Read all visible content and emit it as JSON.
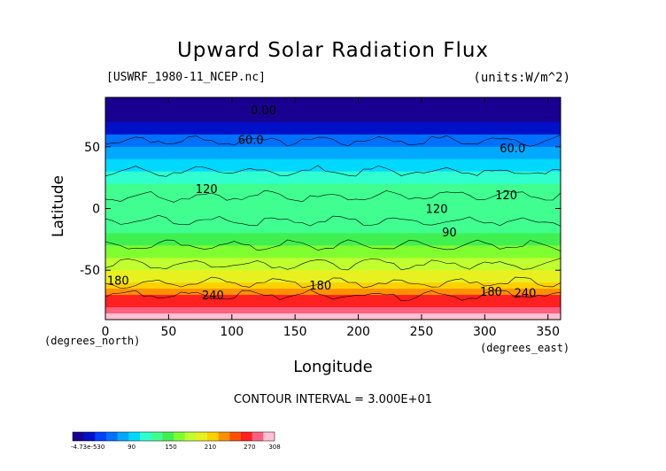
{
  "header": {
    "title": "Upward Solar Radiation Flux",
    "file_label": "[USWRF_1980-11_NCEP.nc]",
    "units_label": "(units:W/m^2)"
  },
  "footer": {
    "contour_interval": "CONTOUR INTERVAL = 3.000E+01"
  },
  "chart_data": {
    "type": "heatmap",
    "title": "Upward Solar Radiation Flux",
    "xlabel": "Longitude",
    "ylabel": "Latitude",
    "x_unit_label": "(degrees_east)",
    "y_unit_label": "(degrees_north)",
    "xlim": [
      0,
      360
    ],
    "ylim": [
      -90,
      90
    ],
    "x_ticks": [
      0,
      50,
      100,
      150,
      200,
      250,
      300,
      350
    ],
    "y_ticks": [
      50,
      0,
      -50
    ],
    "contour_interval": 30,
    "zonal_profile": {
      "latitude": [
        90,
        80,
        70,
        60,
        55,
        50,
        40,
        30,
        20,
        10,
        0,
        -10,
        -20,
        -30,
        -40,
        -50,
        -60,
        -65,
        -70,
        -75,
        -80,
        -85,
        -90
      ],
      "flux": [
        0,
        0,
        15,
        45,
        60,
        75,
        95,
        110,
        125,
        130,
        125,
        130,
        140,
        150,
        165,
        180,
        200,
        225,
        250,
        265,
        280,
        290,
        300
      ]
    },
    "contour_labels": [
      {
        "text": "0.00",
        "lon": 125,
        "lat": 80
      },
      {
        "text": "60.0",
        "lon": 115,
        "lat": 56
      },
      {
        "text": "60.0",
        "lon": 322,
        "lat": 49
      },
      {
        "text": "120",
        "lon": 80,
        "lat": 16
      },
      {
        "text": "120",
        "lon": 317,
        "lat": 11
      },
      {
        "text": "120",
        "lon": 262,
        "lat": 0
      },
      {
        "text": "90",
        "lon": 272,
        "lat": -19
      },
      {
        "text": "180",
        "lon": 10,
        "lat": -58
      },
      {
        "text": "180",
        "lon": 170,
        "lat": -62
      },
      {
        "text": "180",
        "lon": 305,
        "lat": -67
      },
      {
        "text": "240",
        "lon": 85,
        "lat": -70
      },
      {
        "text": "240",
        "lon": 332,
        "lat": -68
      }
    ],
    "colorbar": {
      "min_label": "-4.73e-530",
      "tick_labels": [
        "90",
        "150",
        "210",
        "270",
        "308"
      ],
      "tick_values": [
        90,
        150,
        210,
        270,
        308
      ],
      "min": 0,
      "max": 308,
      "colors": [
        "#1a0090",
        "#0010c8",
        "#0040ff",
        "#0070ff",
        "#00a8ff",
        "#00d8ff",
        "#30ffd0",
        "#40ff90",
        "#40f050",
        "#80ff30",
        "#c0ff30",
        "#e8f020",
        "#ffd000",
        "#ff9000",
        "#ff5000",
        "#ff2020",
        "#ff6080",
        "#ffc0d0"
      ]
    }
  }
}
